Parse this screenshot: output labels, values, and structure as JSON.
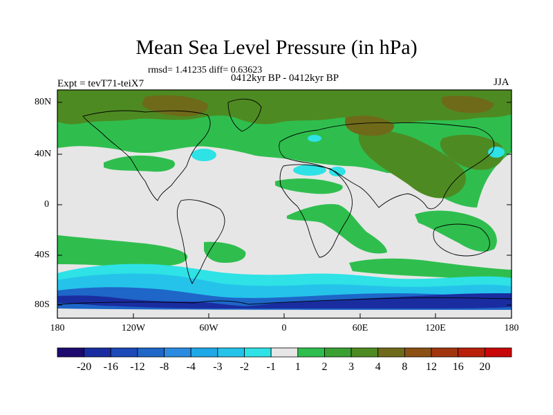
{
  "title": "Mean Sea Level Pressure (in hPa)",
  "stats": "rmsd= 1.41235 diff= 0.63623",
  "subtitle": "0412kyr BP - 0412kyr BP",
  "left_label": "Expt = tevT71-teiX7",
  "right_label": "JJA",
  "y_axis_labels": [
    "80N",
    "40N",
    "0",
    "40S",
    "80S"
  ],
  "x_axis_labels": [
    "180",
    "120W",
    "60W",
    "0",
    "60E",
    "120E",
    "180"
  ],
  "colorbar": {
    "labels": [
      "-20",
      "-16",
      "-12",
      "-8",
      "-4",
      "-3",
      "-2",
      "-1",
      "1",
      "2",
      "3",
      "4",
      "8",
      "12",
      "16",
      "20"
    ],
    "colors": [
      "#1e0a6e",
      "#1a2da0",
      "#1c48b8",
      "#1e66c8",
      "#2a8be0",
      "#1fa8e6",
      "#25c3ea",
      "#2ee2e6",
      "#e6e6e6",
      "#2fbe4e",
      "#3aa032",
      "#4e8a22",
      "#6e6a1a",
      "#8a5014",
      "#a0350e",
      "#b8200a",
      "#c80808"
    ]
  },
  "colors": {
    "neutral": "#e6e6e6",
    "green": "#2fbe4e",
    "darkgreen": "#4e8a22",
    "olive": "#6e6a1a",
    "cyan": "#2ee2e6",
    "lightblue": "#25c3ea",
    "blue": "#1e66c8",
    "darkblue": "#1a2da0"
  }
}
